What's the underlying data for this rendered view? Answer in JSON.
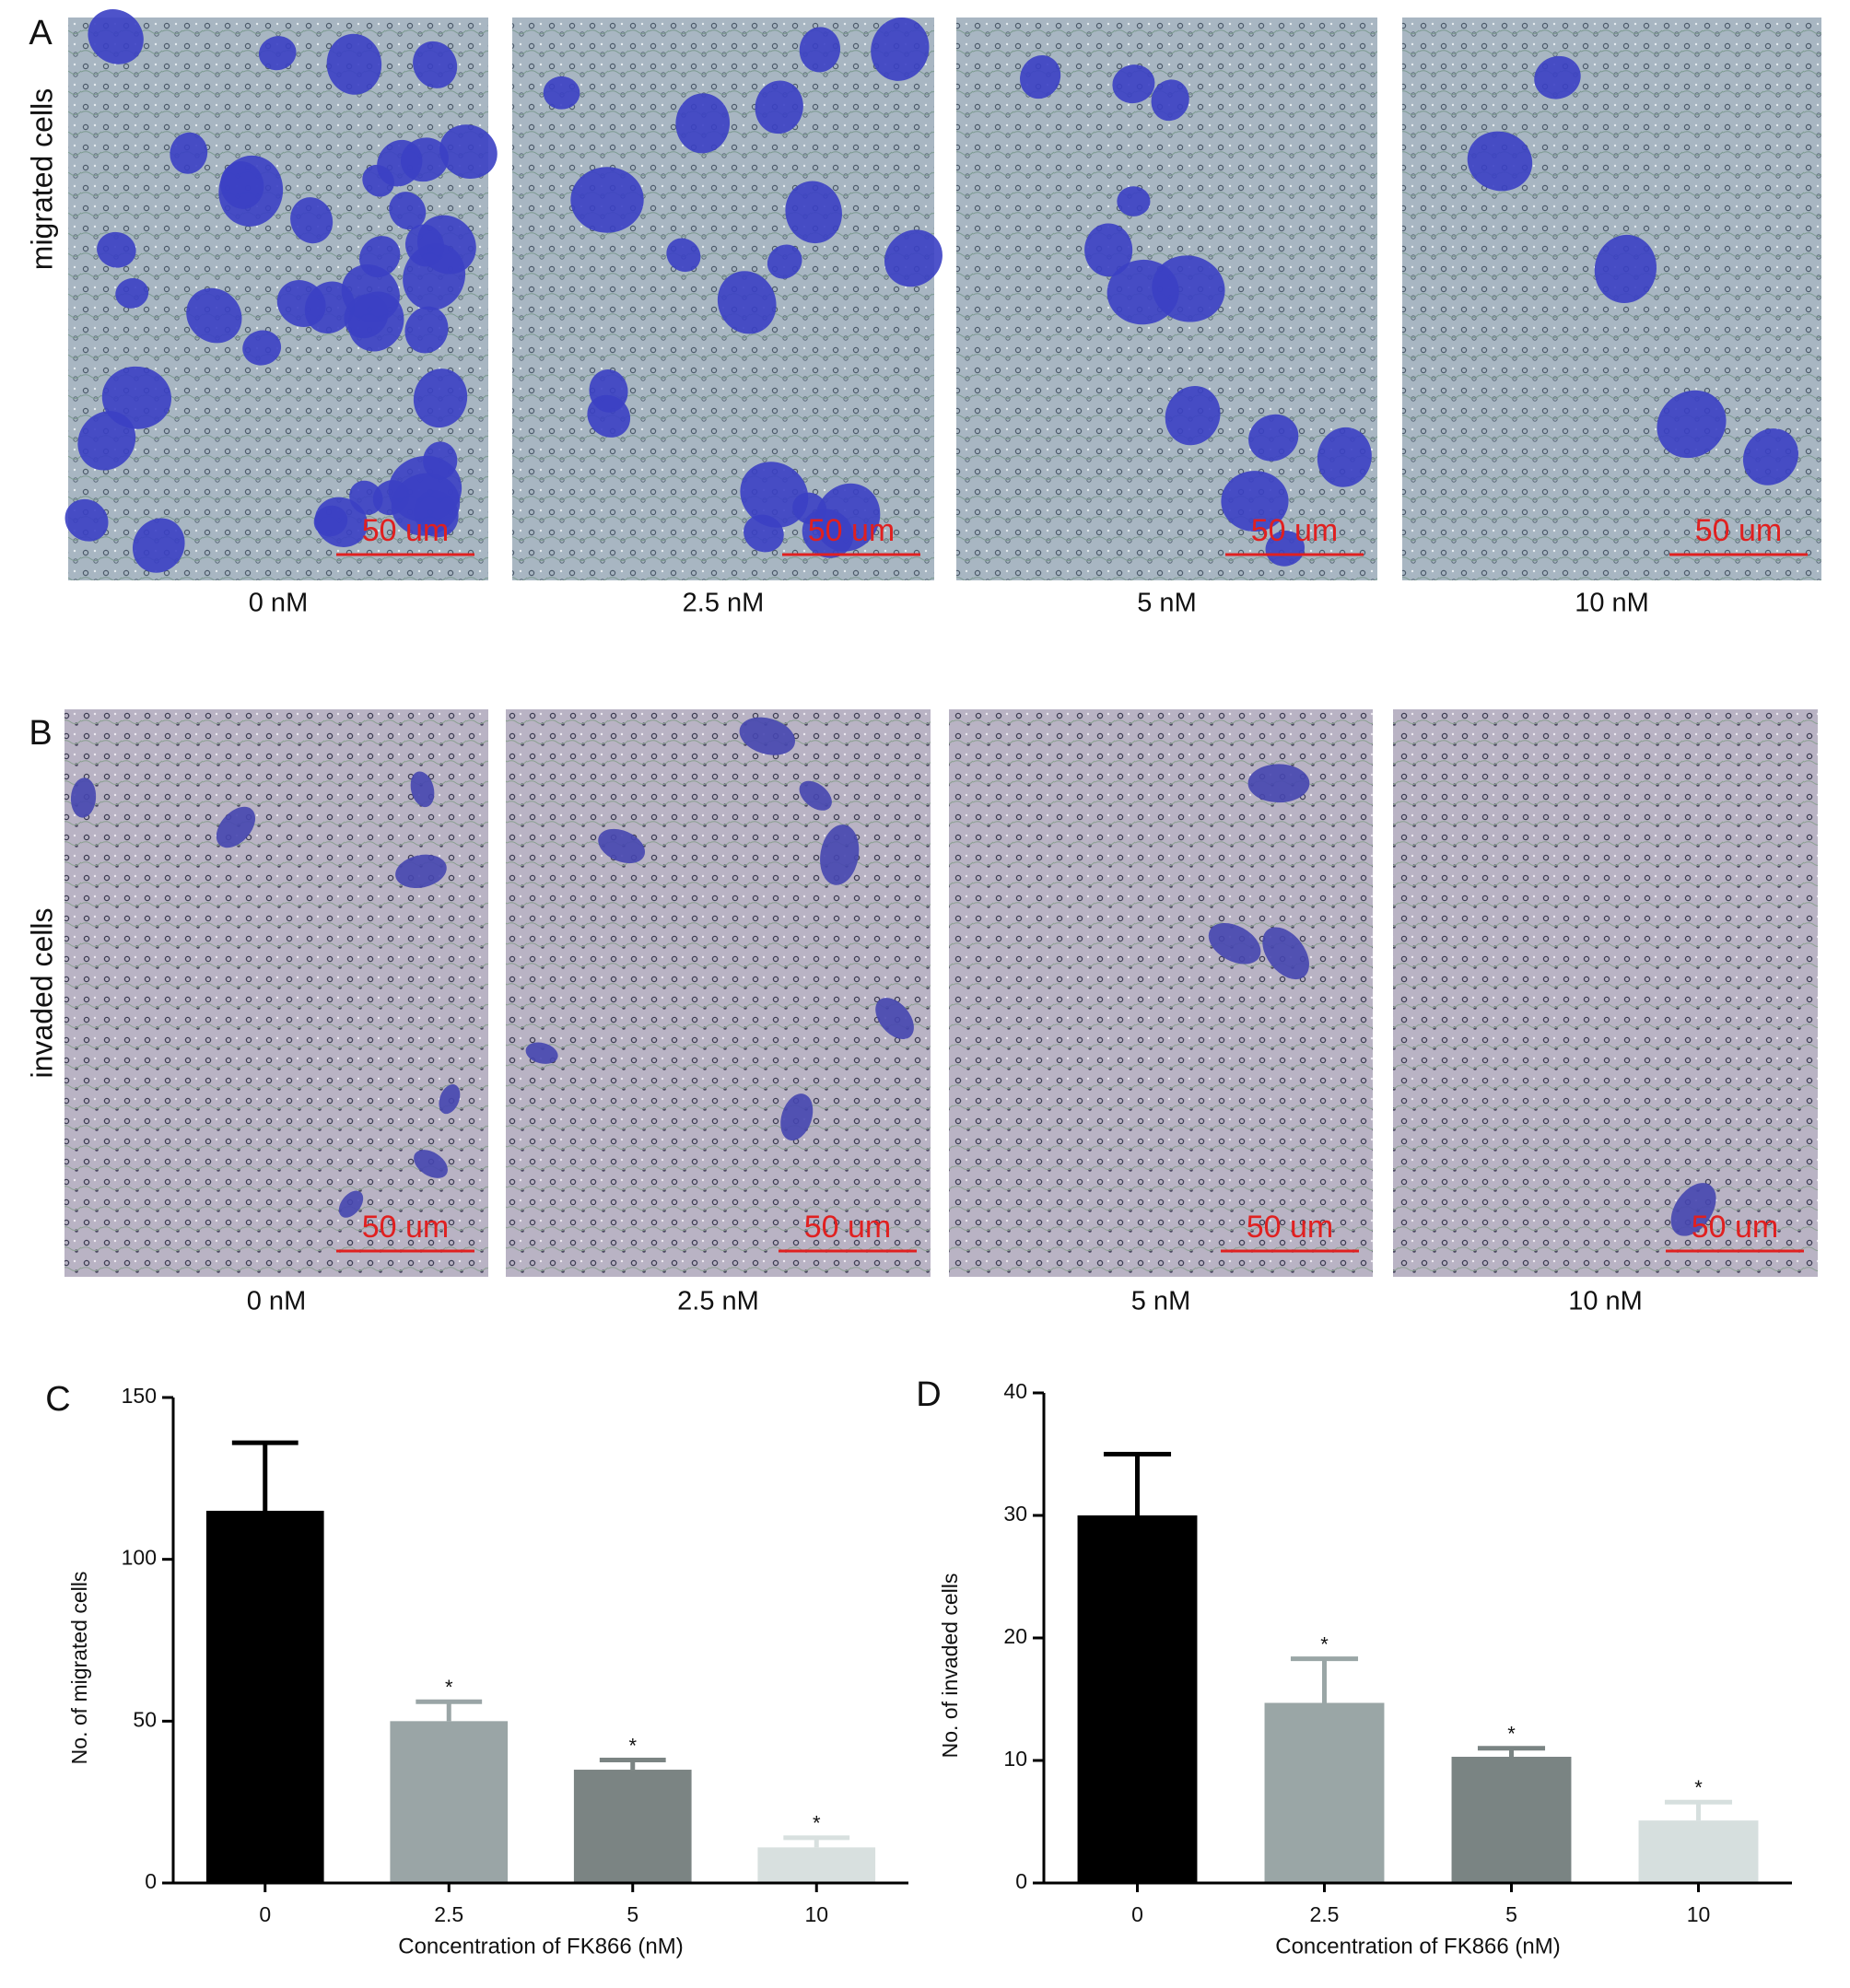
{
  "panels": [
    {
      "label": "A",
      "row_label": "migrated cells",
      "images": [
        {
          "caption": "0 nM",
          "scale_bar": "50 um"
        },
        {
          "caption": "2.5 nM",
          "scale_bar": "50 um"
        },
        {
          "caption": "5 nM",
          "scale_bar": "50 um"
        },
        {
          "caption": "10 nM",
          "scale_bar": "50 um"
        }
      ]
    },
    {
      "label": "B",
      "row_label": "invaded cells",
      "images": [
        {
          "caption": "0 nM",
          "scale_bar": "50 um"
        },
        {
          "caption": "2.5 nM",
          "scale_bar": "50 um"
        },
        {
          "caption": "5 nM",
          "scale_bar": "50 um"
        },
        {
          "caption": "10 nM",
          "scale_bar": "50 um"
        }
      ]
    }
  ],
  "chart_data": [
    {
      "type": "bar",
      "panel_label": "C",
      "categories": [
        "0",
        "2.5",
        "5",
        "10"
      ],
      "values": [
        115,
        50,
        35,
        11
      ],
      "errors": [
        21,
        6,
        3,
        3
      ],
      "colors": [
        "#000000",
        "#9aa5a6",
        "#7b8483",
        "#d8e0df"
      ],
      "significance": [
        null,
        "*",
        "*",
        "*"
      ],
      "ylabel": "No. of migrated cells",
      "xlabel": "Concentration of FK866 (nM)",
      "ylim": [
        0,
        150
      ],
      "yticks": [
        0,
        50,
        100,
        150
      ]
    },
    {
      "type": "bar",
      "panel_label": "D",
      "categories": [
        "0",
        "2.5",
        "5",
        "10"
      ],
      "values": [
        30,
        14.7,
        10.3,
        5.1
      ],
      "errors": [
        5,
        3.6,
        0.7,
        1.5
      ],
      "colors": [
        "#000000",
        "#9aa6a6",
        "#7a8483",
        "#d6dfde"
      ],
      "significance": [
        null,
        "*",
        "*",
        "*"
      ],
      "ylabel": "No. of invaded cells",
      "xlabel": "Concentration of FK866 (nM)",
      "ylim": [
        0,
        40
      ],
      "yticks": [
        0,
        10,
        20,
        30,
        40
      ]
    }
  ]
}
